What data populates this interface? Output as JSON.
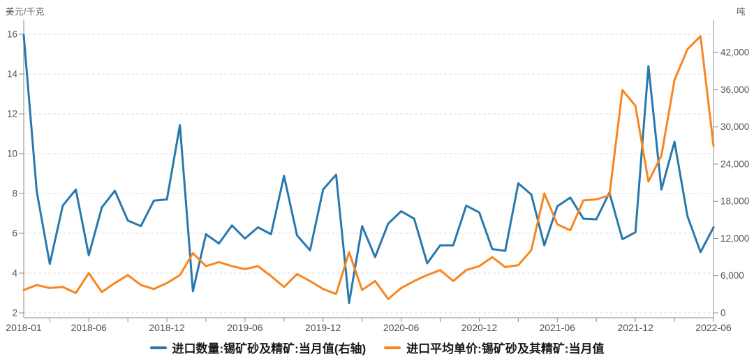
{
  "chart": {
    "left_axis_title": "美元/千克",
    "right_axis_title": "吨",
    "legend": [
      {
        "label": "进口数量:锡矿砂及精矿:当月值(右轴)",
        "color": "#2878ae"
      },
      {
        "label": "进口平均单价:锡矿砂及其精矿:当月值",
        "color": "#f8861e"
      }
    ]
  },
  "chart_data": {
    "type": "line",
    "title": "",
    "x": [
      "2018-01",
      "2018-02",
      "2018-03",
      "2018-04",
      "2018-05",
      "2018-06",
      "2018-07",
      "2018-08",
      "2018-09",
      "2018-10",
      "2018-11",
      "2018-12",
      "2019-01",
      "2019-02",
      "2019-03",
      "2019-04",
      "2019-05",
      "2019-06",
      "2019-07",
      "2019-08",
      "2019-09",
      "2019-10",
      "2019-11",
      "2019-12",
      "2020-01",
      "2020-02",
      "2020-03",
      "2020-04",
      "2020-05",
      "2020-06",
      "2020-07",
      "2020-08",
      "2020-09",
      "2020-10",
      "2020-11",
      "2020-12",
      "2021-01",
      "2021-02",
      "2021-03",
      "2021-04",
      "2021-05",
      "2021-06",
      "2021-07",
      "2021-08",
      "2021-09",
      "2021-10",
      "2021-11",
      "2021-12",
      "2022-01",
      "2022-02",
      "2022-03",
      "2022-04",
      "2022-05",
      "2022-06"
    ],
    "x_tick_labels": [
      "2018-01",
      "2018-06",
      "2018-12",
      "2019-06",
      "2019-12",
      "2020-06",
      "2020-12",
      "2021-06",
      "2021-12",
      "2022-06"
    ],
    "x_labeled_tick_indices": [
      0,
      5,
      11,
      17,
      23,
      29,
      35,
      41,
      47,
      53
    ],
    "left_axis": {
      "unit": "美元/千克",
      "range": [
        2,
        16
      ],
      "ticks": [
        2,
        4,
        6,
        8,
        10,
        12,
        14,
        16
      ]
    },
    "right_axis": {
      "unit": "吨",
      "range": [
        0,
        45000
      ],
      "ticks": [
        0,
        6000,
        12000,
        18000,
        24000,
        30000,
        36000,
        42000
      ]
    },
    "grid": "horizontal-dashed",
    "legend_position": "bottom-center",
    "series": [
      {
        "name": "进口数量:锡矿砂及精矿:当月值(右轴)",
        "axis": "right",
        "unit": "吨",
        "color": "#2878ae",
        "values": [
          44800,
          19600,
          7900,
          17300,
          19900,
          9300,
          17000,
          19700,
          14900,
          14000,
          18100,
          18300,
          30300,
          3500,
          12700,
          11200,
          14100,
          12000,
          13800,
          12700,
          22100,
          12500,
          10100,
          19900,
          22300,
          1600,
          14000,
          9000,
          14400,
          16400,
          15200,
          8000,
          10900,
          10900,
          17300,
          16200,
          10300,
          10000,
          20900,
          19100,
          10900,
          17200,
          18600,
          15200,
          15100,
          19400,
          11900,
          13000,
          39800,
          19900,
          27600,
          15600,
          9800,
          13800
        ]
      },
      {
        "name": "进口平均单价:锡矿砂及其精矿:当月值",
        "axis": "left",
        "unit": "美元/千克",
        "color": "#f8861e",
        "values": [
          3.15,
          3.4,
          3.25,
          3.3,
          3.0,
          4.0,
          3.05,
          3.5,
          3.9,
          3.4,
          3.2,
          3.5,
          3.9,
          5.0,
          4.35,
          4.55,
          4.35,
          4.2,
          4.35,
          3.85,
          3.3,
          3.95,
          3.6,
          3.2,
          2.95,
          5.05,
          3.15,
          3.6,
          2.7,
          3.25,
          3.6,
          3.9,
          4.15,
          3.6,
          4.15,
          4.35,
          4.8,
          4.3,
          4.4,
          5.15,
          8.0,
          6.45,
          6.15,
          7.65,
          7.7,
          7.9,
          13.2,
          12.4,
          8.6,
          9.9,
          13.7,
          15.25,
          15.9,
          10.4
        ]
      }
    ]
  }
}
